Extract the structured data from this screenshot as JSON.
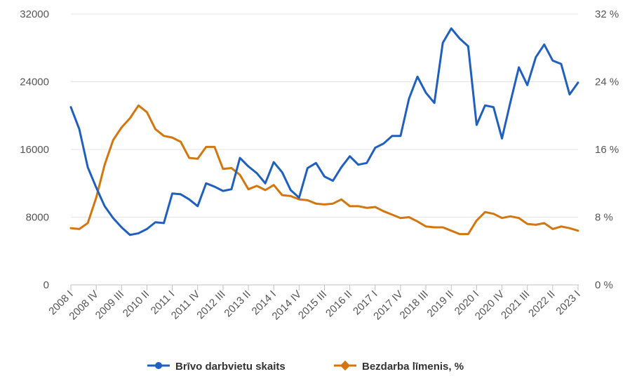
{
  "colors": {
    "vacancies": "#1f5fbf",
    "unemployment": "#d4760f",
    "grid": "#e4e4e4",
    "axis": "#c0c0c0"
  },
  "legend": {
    "vacancies_label": "Brīvo darbvietu skaits",
    "unemployment_label": "Bezdarba līmenis, %"
  },
  "chart_data": {
    "type": "line",
    "grid": true,
    "legend_position": "bottom",
    "xlabel": "",
    "ylabel": "",
    "x_tick_labels": [
      "2008 I",
      "2008 IV",
      "2009 III",
      "2010 II",
      "2011 I",
      "2011 IV",
      "2012 III",
      "2013 II",
      "2014 I",
      "2014 IV",
      "2015 III",
      "2016 II",
      "2017 I",
      "2017 IV",
      "2018 III",
      "2019 II",
      "2020 I",
      "2020 IV",
      "2021 III",
      "2022 II",
      "2023 I"
    ],
    "left_axis": {
      "range": [
        0,
        32000
      ],
      "ticks": [
        "0",
        "8000",
        "16000",
        "24000",
        "32000"
      ]
    },
    "right_axis": {
      "range": [
        0,
        32
      ],
      "ticks": [
        "0 %",
        "8 %",
        "16 %",
        "24 %",
        "32 %"
      ]
    },
    "categories": [
      "2008 I",
      "2008 II",
      "2008 III",
      "2008 IV",
      "2009 I",
      "2009 II",
      "2009 III",
      "2009 IV",
      "2010 I",
      "2010 II",
      "2010 III",
      "2010 IV",
      "2011 I",
      "2011 II",
      "2011 III",
      "2011 IV",
      "2012 I",
      "2012 II",
      "2012 III",
      "2012 IV",
      "2013 I",
      "2013 II",
      "2013 III",
      "2013 IV",
      "2014 I",
      "2014 II",
      "2014 III",
      "2014 IV",
      "2015 I",
      "2015 II",
      "2015 III",
      "2015 IV",
      "2016 I",
      "2016 II",
      "2016 III",
      "2016 IV",
      "2017 I",
      "2017 II",
      "2017 III",
      "2017 IV",
      "2018 I",
      "2018 II",
      "2018 III",
      "2018 IV",
      "2019 I",
      "2019 II",
      "2019 III",
      "2019 IV",
      "2020 I",
      "2020 II",
      "2020 III",
      "2020 IV",
      "2021 I",
      "2021 II",
      "2021 III",
      "2021 IV",
      "2022 I",
      "2022 II",
      "2022 III",
      "2022 IV",
      "2023 I"
    ],
    "series": [
      {
        "name": "Brīvo darbvietu skaits",
        "axis": "left",
        "values": [
          21000,
          18400,
          13900,
          11500,
          9300,
          7900,
          6800,
          5900,
          6100,
          6600,
          7400,
          7300,
          10800,
          10700,
          10100,
          9300,
          12000,
          11600,
          11100,
          11300,
          15000,
          14000,
          13200,
          12000,
          14500,
          13300,
          11200,
          10300,
          13800,
          14400,
          12800,
          12300,
          13900,
          15200,
          14200,
          14400,
          16200,
          16700,
          17600,
          17600,
          22000,
          24600,
          22700,
          21500,
          28600,
          30300,
          29100,
          28200,
          18900,
          21200,
          21000,
          17300,
          21600,
          25700,
          23600,
          26900,
          28400,
          26500,
          26100,
          22500,
          23900
        ]
      },
      {
        "name": "Bezdarba līmenis, %",
        "axis": "right",
        "values": [
          6.7,
          6.6,
          7.3,
          10.3,
          14.2,
          17.1,
          18.6,
          19.7,
          21.2,
          20.4,
          18.4,
          17.6,
          17.4,
          16.9,
          15.0,
          14.9,
          16.3,
          16.3,
          13.7,
          13.8,
          13.0,
          11.3,
          11.7,
          11.2,
          11.8,
          10.6,
          10.5,
          10.1,
          10.0,
          9.6,
          9.5,
          9.6,
          10.1,
          9.3,
          9.3,
          9.1,
          9.2,
          8.7,
          8.3,
          7.9,
          8.0,
          7.5,
          6.9,
          6.8,
          6.8,
          6.4,
          6.0,
          6.0,
          7.6,
          8.6,
          8.4,
          7.9,
          8.1,
          7.9,
          7.2,
          7.1,
          7.3,
          6.6,
          6.9,
          6.7,
          6.4
        ]
      }
    ]
  }
}
